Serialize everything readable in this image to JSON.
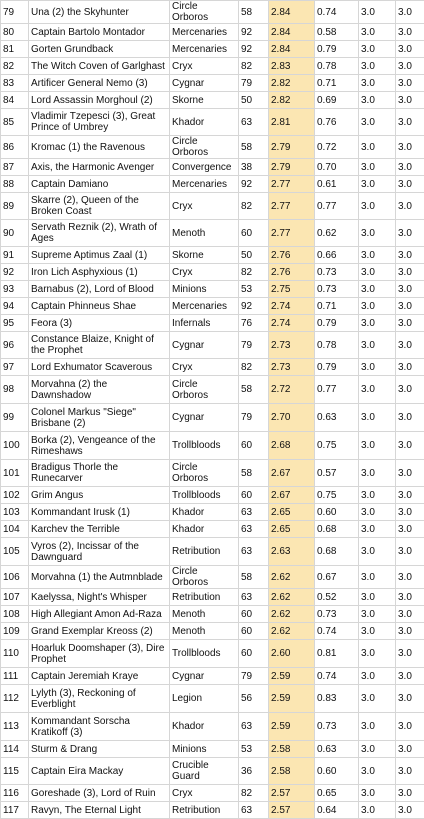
{
  "rows": [
    {
      "rank": "79",
      "name": "Una (2) the Skyhunter",
      "faction": "Circle Orboros",
      "count": "58",
      "score": "2.84",
      "a": "0.74",
      "b": "3.0",
      "c": "3.0",
      "h": 13
    },
    {
      "rank": "80",
      "name": "Captain Bartolo Montador",
      "faction": "Mercenaries",
      "count": "92",
      "score": "2.84",
      "a": "0.58",
      "b": "3.0",
      "c": "3.0",
      "h": 17
    },
    {
      "rank": "81",
      "name": "Gorten Grundback",
      "faction": "Mercenaries",
      "count": "92",
      "score": "2.84",
      "a": "0.79",
      "b": "3.0",
      "c": "3.0",
      "h": 17
    },
    {
      "rank": "82",
      "name": "The Witch Coven of Garlghast",
      "faction": "Cryx",
      "count": "82",
      "score": "2.83",
      "a": "0.78",
      "b": "3.0",
      "c": "3.0",
      "h": 17
    },
    {
      "rank": "83",
      "name": "Artificer General Nemo (3)",
      "faction": "Cygnar",
      "count": "79",
      "score": "2.82",
      "a": "0.71",
      "b": "3.0",
      "c": "3.0",
      "h": 17
    },
    {
      "rank": "84",
      "name": "Lord Assassin Morghoul (2)",
      "faction": "Skorne",
      "count": "50",
      "score": "2.82",
      "a": "0.69",
      "b": "3.0",
      "c": "3.0",
      "h": 17
    },
    {
      "rank": "85",
      "name": "Vladimir Tzepesci (3), Great Prince of Umbrey",
      "faction": "Khador",
      "count": "63",
      "score": "2.81",
      "a": "0.76",
      "b": "3.0",
      "c": "3.0",
      "h": 27
    },
    {
      "rank": "86",
      "name": "Kromac (1) the Ravenous",
      "faction": "Circle Orboros",
      "count": "58",
      "score": "2.79",
      "a": "0.72",
      "b": "3.0",
      "c": "3.0",
      "h": 17
    },
    {
      "rank": "87",
      "name": "Axis, the Harmonic Avenger",
      "faction": "Convergence",
      "count": "38",
      "score": "2.79",
      "a": "0.70",
      "b": "3.0",
      "c": "3.0",
      "h": 17
    },
    {
      "rank": "88",
      "name": "Captain Damiano",
      "faction": "Mercenaries",
      "count": "92",
      "score": "2.77",
      "a": "0.61",
      "b": "3.0",
      "c": "3.0",
      "h": 17
    },
    {
      "rank": "89",
      "name": "Skarre (2), Queen of the Broken Coast",
      "faction": "Cryx",
      "count": "82",
      "score": "2.77",
      "a": "0.77",
      "b": "3.0",
      "c": "3.0",
      "h": 27
    },
    {
      "rank": "90",
      "name": "Servath Reznik (2), Wrath of Ages",
      "faction": "Menoth",
      "count": "60",
      "score": "2.77",
      "a": "0.62",
      "b": "3.0",
      "c": "3.0",
      "h": 27
    },
    {
      "rank": "91",
      "name": "Supreme Aptimus Zaal (1)",
      "faction": "Skorne",
      "count": "50",
      "score": "2.76",
      "a": "0.66",
      "b": "3.0",
      "c": "3.0",
      "h": 17
    },
    {
      "rank": "92",
      "name": "Iron Lich Asphyxious (1)",
      "faction": "Cryx",
      "count": "82",
      "score": "2.76",
      "a": "0.73",
      "b": "3.0",
      "c": "3.0",
      "h": 17
    },
    {
      "rank": "93",
      "name": "Barnabus (2), Lord of Blood",
      "faction": "Minions",
      "count": "53",
      "score": "2.75",
      "a": "0.73",
      "b": "3.0",
      "c": "3.0",
      "h": 17
    },
    {
      "rank": "94",
      "name": "Captain Phinneus Shae",
      "faction": "Mercenaries",
      "count": "92",
      "score": "2.74",
      "a": "0.71",
      "b": "3.0",
      "c": "3.0",
      "h": 17
    },
    {
      "rank": "95",
      "name": "Feora (3)",
      "faction": "Infernals",
      "count": "76",
      "score": "2.74",
      "a": "0.79",
      "b": "3.0",
      "c": "3.0",
      "h": 17
    },
    {
      "rank": "96",
      "name": "Constance Blaize, Knight of the Prophet",
      "faction": "Cygnar",
      "count": "79",
      "score": "2.73",
      "a": "0.78",
      "b": "3.0",
      "c": "3.0",
      "h": 27
    },
    {
      "rank": "97",
      "name": "Lord Exhumator Scaverous",
      "faction": "Cryx",
      "count": "82",
      "score": "2.73",
      "a": "0.79",
      "b": "3.0",
      "c": "3.0",
      "h": 17
    },
    {
      "rank": "98",
      "name": "Morvahna (2) the Dawnshadow",
      "faction": "Circle Orboros",
      "count": "58",
      "score": "2.72",
      "a": "0.77",
      "b": "3.0",
      "c": "3.0",
      "h": 28
    },
    {
      "rank": "99",
      "name": "Colonel Markus \"Siege\" Brisbane (2)",
      "faction": "Cygnar",
      "count": "79",
      "score": "2.70",
      "a": "0.63",
      "b": "3.0",
      "c": "3.0",
      "h": 28
    },
    {
      "rank": "100",
      "name": "Borka (2), Vengeance of the Rimeshaws",
      "faction": "Trollbloods",
      "count": "60",
      "score": "2.68",
      "a": "0.75",
      "b": "3.0",
      "c": "3.0",
      "h": 28
    },
    {
      "rank": "101",
      "name": "Bradigus Thorle the Runecarver",
      "faction": "Circle Orboros",
      "count": "58",
      "score": "2.67",
      "a": "0.57",
      "b": "3.0",
      "c": "3.0",
      "h": 27
    },
    {
      "rank": "102",
      "name": "Grim Angus",
      "faction": "Trollbloods",
      "count": "60",
      "score": "2.67",
      "a": "0.75",
      "b": "3.0",
      "c": "3.0",
      "h": 17
    },
    {
      "rank": "103",
      "name": "Kommandant Irusk (1)",
      "faction": "Khador",
      "count": "63",
      "score": "2.65",
      "a": "0.60",
      "b": "3.0",
      "c": "3.0",
      "h": 17
    },
    {
      "rank": "104",
      "name": "Karchev the Terrible",
      "faction": "Khador",
      "count": "63",
      "score": "2.65",
      "a": "0.68",
      "b": "3.0",
      "c": "3.0",
      "h": 17
    },
    {
      "rank": "105",
      "name": "Vyros (2), Incissar of the Dawnguard",
      "faction": "Retribution",
      "count": "63",
      "score": "2.63",
      "a": "0.68",
      "b": "3.0",
      "c": "3.0",
      "h": 28
    },
    {
      "rank": "106",
      "name": "Morvahna (1) the Autmnblade",
      "faction": "Circle Orboros",
      "count": "58",
      "score": "2.62",
      "a": "0.67",
      "b": "3.0",
      "c": "3.0",
      "h": 17
    },
    {
      "rank": "107",
      "name": "Kaelyssa, Night's Whisper",
      "faction": "Retribution",
      "count": "63",
      "score": "2.62",
      "a": "0.52",
      "b": "3.0",
      "c": "3.0",
      "h": 17
    },
    {
      "rank": "108",
      "name": "High Allegiant Amon Ad-Raza",
      "faction": "Menoth",
      "count": "60",
      "score": "2.62",
      "a": "0.73",
      "b": "3.0",
      "c": "3.0",
      "h": 17
    },
    {
      "rank": "109",
      "name": "Grand Exemplar Kreoss (2)",
      "faction": "Menoth",
      "count": "60",
      "score": "2.62",
      "a": "0.74",
      "b": "3.0",
      "c": "3.0",
      "h": 17
    },
    {
      "rank": "110",
      "name": "Hoarluk Doomshaper (3), Dire Prophet",
      "faction": "Trollbloods",
      "count": "60",
      "score": "2.60",
      "a": "0.81",
      "b": "3.0",
      "c": "3.0",
      "h": 28
    },
    {
      "rank": "111",
      "name": "Captain Jeremiah Kraye",
      "faction": "Cygnar",
      "count": "79",
      "score": "2.59",
      "a": "0.74",
      "b": "3.0",
      "c": "3.0",
      "h": 17
    },
    {
      "rank": "112",
      "name": "Lylyth (3), Reckoning of Everblight",
      "faction": "Legion",
      "count": "56",
      "score": "2.59",
      "a": "0.83",
      "b": "3.0",
      "c": "3.0",
      "h": 28
    },
    {
      "rank": "113",
      "name": "Kommandant Sorscha Kratikoff (3)",
      "faction": "Khador",
      "count": "63",
      "score": "2.59",
      "a": "0.73",
      "b": "3.0",
      "c": "3.0",
      "h": 28
    },
    {
      "rank": "114",
      "name": "Sturm & Drang",
      "faction": "Minions",
      "count": "53",
      "score": "2.58",
      "a": "0.63",
      "b": "3.0",
      "c": "3.0",
      "h": 17
    },
    {
      "rank": "115",
      "name": "Captain Eira Mackay",
      "faction": "Crucible Guard",
      "count": "36",
      "score": "2.58",
      "a": "0.60",
      "b": "3.0",
      "c": "3.0",
      "h": 27
    },
    {
      "rank": "116",
      "name": "Goreshade (3), Lord of Ruin",
      "faction": "Cryx",
      "count": "82",
      "score": "2.57",
      "a": "0.65",
      "b": "3.0",
      "c": "3.0",
      "h": 17
    },
    {
      "rank": "117",
      "name": "Ravyn, The Eternal Light",
      "faction": "Retribution",
      "count": "63",
      "score": "2.57",
      "a": "0.64",
      "b": "3.0",
      "c": "3.0",
      "h": 17
    }
  ]
}
